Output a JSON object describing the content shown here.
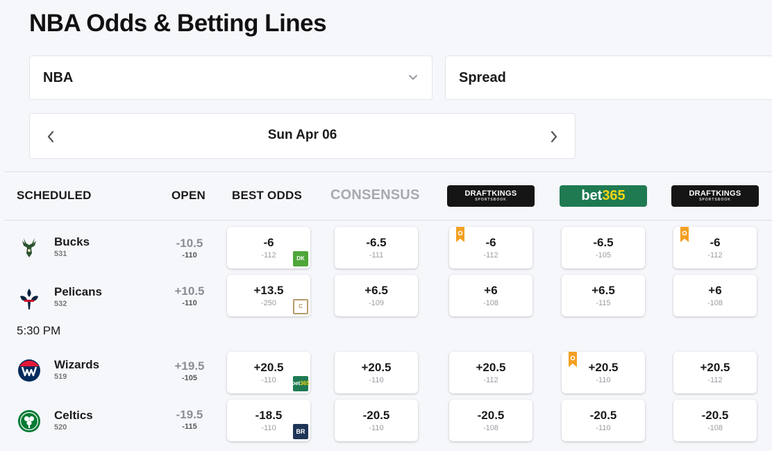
{
  "page": {
    "title": "NBA Odds & Betting Lines"
  },
  "filters": {
    "league": {
      "value": "NBA"
    },
    "market": {
      "value": "Spread"
    }
  },
  "date_nav": {
    "label": "Sun Apr 06"
  },
  "columns": {
    "scheduled": "SCHEDULED",
    "open": "OPEN",
    "best_odds": "BEST ODDS",
    "consensus": "CONSENSUS",
    "books": [
      {
        "id": "dk1",
        "name": "DRAFTKINGS",
        "sub": "SPORTSBOOK"
      },
      {
        "id": "b365",
        "name_a": "bet",
        "name_b": "365"
      },
      {
        "id": "dk2",
        "name": "DRAFTKINGS",
        "sub": "SPORTSBOOK"
      }
    ]
  },
  "games": [
    {
      "time": "",
      "teams": [
        {
          "name": "Bucks",
          "number": "531",
          "open": {
            "line": "-10.5",
            "odds": "-110"
          },
          "best": {
            "line": "-6",
            "odds": "-112",
            "book": "DK"
          },
          "consensus": {
            "line": "-6.5",
            "odds": "-111"
          },
          "books": [
            {
              "line": "-6",
              "odds": "-112",
              "boost": true
            },
            {
              "line": "-6.5",
              "odds": "-105",
              "boost": false
            },
            {
              "line": "-6",
              "odds": "-112",
              "boost": true
            }
          ]
        },
        {
          "name": "Pelicans",
          "number": "532",
          "open": {
            "line": "+10.5",
            "odds": "-110"
          },
          "best": {
            "line": "+13.5",
            "odds": "-250",
            "book": "C"
          },
          "consensus": {
            "line": "+6.5",
            "odds": "-109"
          },
          "books": [
            {
              "line": "+6",
              "odds": "-108",
              "boost": false
            },
            {
              "line": "+6.5",
              "odds": "-115",
              "boost": false
            },
            {
              "line": "+6",
              "odds": "-108",
              "boost": false
            }
          ]
        }
      ]
    },
    {
      "time": "5:30 PM",
      "teams": [
        {
          "name": "Wizards",
          "number": "519",
          "open": {
            "line": "+19.5",
            "odds": "-105"
          },
          "best": {
            "line": "+20.5",
            "odds": "-110",
            "book_a": "bet",
            "book_b": "365"
          },
          "consensus": {
            "line": "+20.5",
            "odds": "-110"
          },
          "books": [
            {
              "line": "+20.5",
              "odds": "-112",
              "boost": false
            },
            {
              "line": "+20.5",
              "odds": "-110",
              "boost": true
            },
            {
              "line": "+20.5",
              "odds": "-112",
              "boost": false
            }
          ]
        },
        {
          "name": "Celtics",
          "number": "520",
          "open": {
            "line": "-19.5",
            "odds": "-115"
          },
          "best": {
            "line": "-18.5",
            "odds": "-110",
            "book": "BR"
          },
          "consensus": {
            "line": "-20.5",
            "odds": "-110"
          },
          "books": [
            {
              "line": "-20.5",
              "odds": "-108",
              "boost": false
            },
            {
              "line": "-20.5",
              "odds": "-110",
              "boost": false
            },
            {
              "line": "-20.5",
              "odds": "-108",
              "boost": false
            }
          ]
        }
      ]
    }
  ],
  "colors": {
    "draftkings_green": "#4fa639",
    "bet365_green": "#1f7a52",
    "bet365_yellow": "#f5d516",
    "boost_orange": "#f3a023"
  }
}
